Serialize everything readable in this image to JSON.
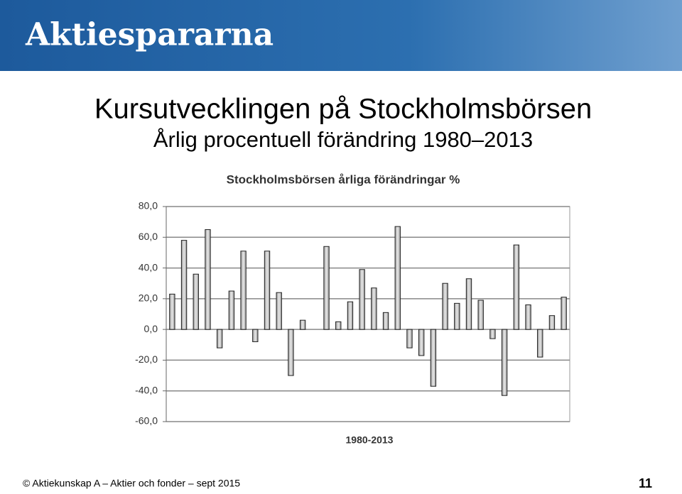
{
  "header": {
    "logo": "Aktiespararna"
  },
  "slide": {
    "title": "Kursutvecklingen på Stockholmsbörsen",
    "subtitle": "Årlig procentuell förändring 1980–2013"
  },
  "footer": {
    "text": "© Aktiekunskap A – Aktier och fonder – sept 2015",
    "page": "11"
  },
  "chart_data": {
    "type": "bar",
    "title": "Stockholmsbörsen årliga förändringar %",
    "x_label": "1980-2013",
    "values": [
      23,
      58,
      36,
      65,
      -12,
      25,
      51,
      -8,
      51,
      24,
      -30,
      6,
      0,
      54,
      5,
      18,
      39,
      27,
      11,
      67,
      -12,
      -17,
      -37,
      30,
      17,
      33,
      19,
      -6,
      -43,
      55,
      16,
      -18,
      9,
      21
    ],
    "color": "#c8c8c8",
    "ylim": [
      -60,
      80
    ],
    "yticks": [
      {
        "value": -60,
        "label": "-60,0"
      },
      {
        "value": -40,
        "label": "-40,0"
      },
      {
        "value": -20,
        "label": "-20,0"
      },
      {
        "value": 0,
        "label": "0,0"
      },
      {
        "value": 20,
        "label": "20,0"
      },
      {
        "value": 40,
        "label": "40,0"
      },
      {
        "value": 60,
        "label": "60,0"
      },
      {
        "value": 80,
        "label": "80,0"
      }
    ],
    "grid": true
  }
}
